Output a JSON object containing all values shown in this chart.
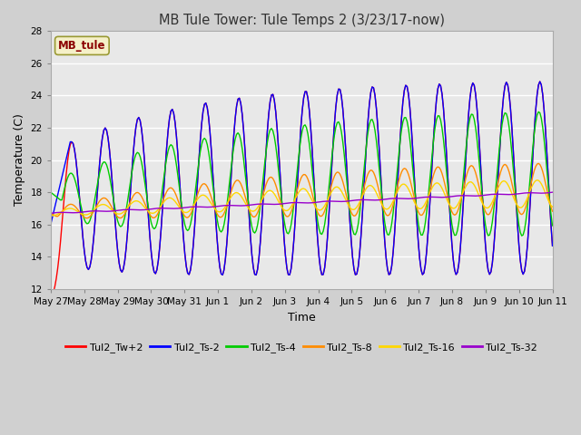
{
  "title": "MB Tule Tower: Tule Temps 2 (3/23/17-now)",
  "xlabel": "Time",
  "ylabel": "Temperature (C)",
  "ylim": [
    12,
    28
  ],
  "yticks": [
    12,
    14,
    16,
    18,
    20,
    22,
    24,
    26,
    28
  ],
  "legend_label": "MB_tule",
  "legend_text_color": "#8b0000",
  "fig_bg": "#d0d0d0",
  "plot_bg": "#e8e8e8",
  "series_colors": {
    "Tul2_Tw+2": "#ff0000",
    "Tul2_Ts-2": "#0000ff",
    "Tul2_Ts-4": "#00cc00",
    "Tul2_Ts-8": "#ff8c00",
    "Tul2_Ts-16": "#ffd700",
    "Tul2_Ts-32": "#9900cc"
  },
  "x_tick_labels": [
    "May 27",
    "May 28",
    "May 29",
    "May 30",
    "May 31",
    "Jun 1",
    "Jun 2",
    "Jun 3",
    "Jun 4",
    "Jun 5",
    "Jun 6",
    "Jun 7",
    "Jun 8",
    "Jun 9",
    "Jun 10",
    "Jun 11"
  ]
}
